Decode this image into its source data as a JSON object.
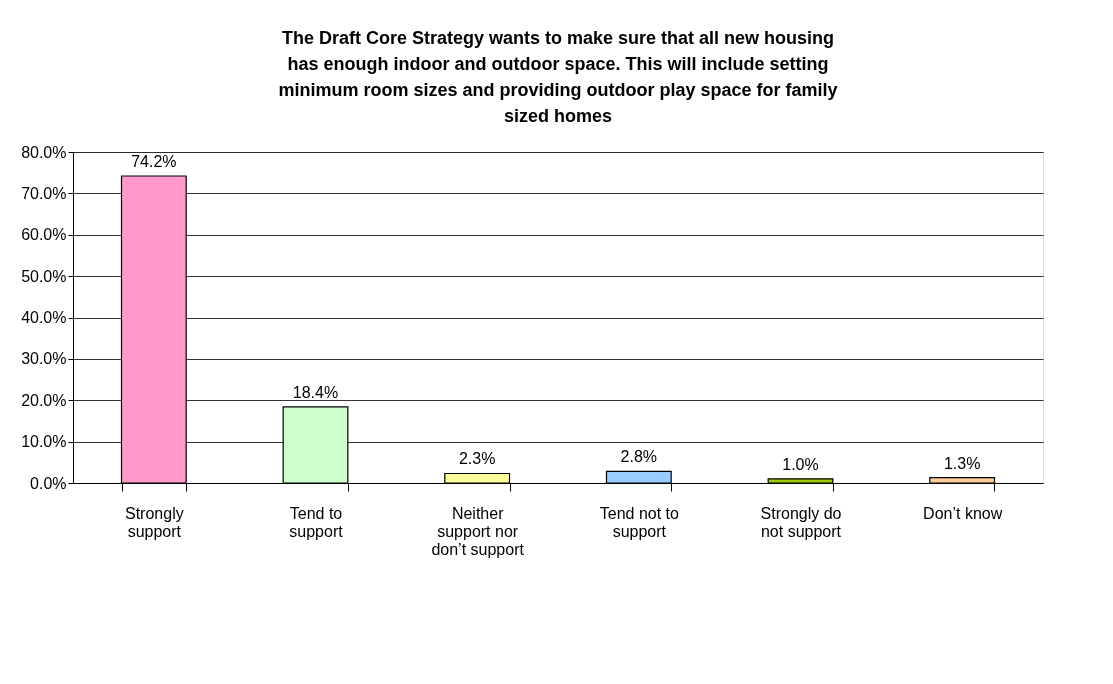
{
  "chart_data": {
    "type": "bar",
    "title": "The Draft Core Strategy wants to make sure that all new housing has enough indoor and outdoor space. This will include setting minimum room sizes and providing outdoor play space for family sized homes",
    "categories": [
      "Strongly support",
      "Tend to support",
      "Neither support nor don’t support",
      "Tend not to support",
      "Strongly do not support",
      "Don’t know"
    ],
    "values": [
      74.2,
      18.4,
      2.3,
      2.8,
      1.0,
      1.3
    ],
    "colors": [
      "#ff99cc",
      "#ccffcc",
      "#ffff99",
      "#99ccff",
      "#99cc00",
      "#ffcc99"
    ],
    "value_labels": [
      "74.2%",
      "18.4%",
      "2.3%",
      "2.8%",
      "1.0%",
      "1.3%"
    ],
    "ylim": [
      0,
      80
    ],
    "yticks": [
      {
        "value": 0,
        "label": "0.0%"
      },
      {
        "value": 10,
        "label": "10.0%"
      },
      {
        "value": 20,
        "label": "20.0%"
      },
      {
        "value": 30,
        "label": "30.0%"
      },
      {
        "value": 40,
        "label": "40.0%"
      },
      {
        "value": 50,
        "label": "50.0%"
      },
      {
        "value": 60,
        "label": "60.0%"
      },
      {
        "value": 70,
        "label": "70.0%"
      },
      {
        "value": 80,
        "label": "80.0%"
      }
    ],
    "grid": "y"
  }
}
